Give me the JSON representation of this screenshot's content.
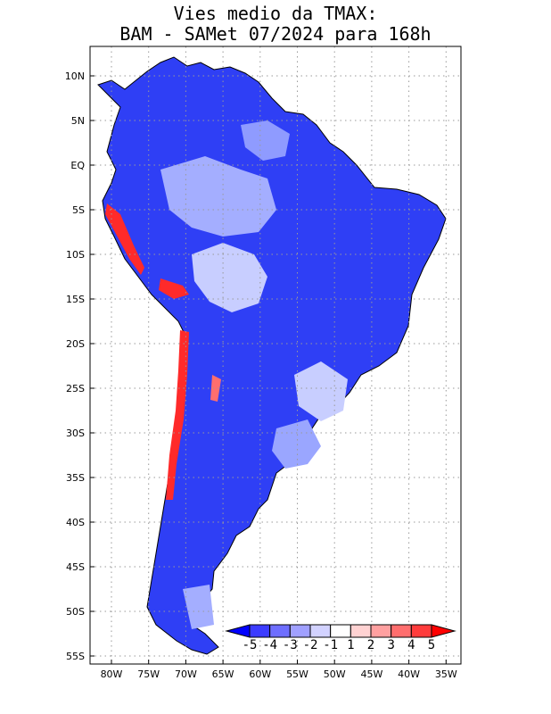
{
  "title": {
    "line1": "Vies medio da TMAX:",
    "line2": "BAM - SAMet 07/2024  para 168h"
  },
  "map": {
    "lat_labels": [
      "10N",
      "5N",
      "EQ",
      "5S",
      "10S",
      "15S",
      "20S",
      "25S",
      "30S",
      "35S",
      "40S",
      "45S",
      "50S",
      "55S"
    ],
    "lon_labels": [
      "80W",
      "75W",
      "70W",
      "65W",
      "60W",
      "55W",
      "50W",
      "45W",
      "40W",
      "35W"
    ]
  },
  "colorbar": {
    "labels": [
      "-5",
      "-4",
      "-3",
      "-2",
      "-1",
      "1",
      "2",
      "3",
      "4",
      "5"
    ],
    "colors": [
      "#0000ff",
      "#3c3cff",
      "#6e6eff",
      "#a0a0ff",
      "#d2d2ff",
      "#ffffff",
      "#ffd2d2",
      "#ffa0a0",
      "#ff6e6e",
      "#ff3c3c",
      "#ff0000"
    ]
  },
  "colors": {
    "land_bias_mean": "#2c3cf4",
    "land_bias_light": "#9aa6ff",
    "andes_warm": "#ff2a2a",
    "grid": "#9a9a9a"
  }
}
